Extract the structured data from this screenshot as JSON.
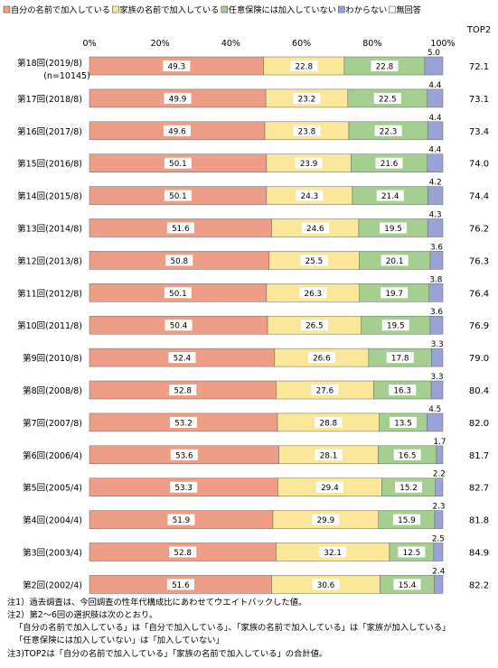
{
  "chart_data": {
    "type": "bar",
    "orientation": "horizontal",
    "stacked": true,
    "percent": true,
    "xlim": [
      0,
      100
    ],
    "x_ticks": [
      "0%",
      "20%",
      "40%",
      "60%",
      "80%",
      "100%"
    ],
    "right_header": "TOP2",
    "legend_placement": "top",
    "categories": [
      "第18回(2019/8)",
      "第17回(2018/8)",
      "第16回(2017/8)",
      "第15回(2016/8)",
      "第14回(2015/8)",
      "第13回(2014/8)",
      "第12回(2013/8)",
      "第11回(2012/8)",
      "第10回(2011/8)",
      "第9回(2010/8)",
      "第8回(2008/8)",
      "第7回(2007/8)",
      "第6回(2006/4)",
      "第5回(2005/4)",
      "第4回(2004/4)",
      "第3回(2003/4)",
      "第2回(2002/4)"
    ],
    "category_sublabels": [
      "(n=10145)",
      "",
      "",
      "",
      "",
      "",
      "",
      "",
      "",
      "",
      "",
      "",
      "",
      "",
      "",
      "",
      ""
    ],
    "series": [
      {
        "name": "自分の名前で加入している",
        "color": "#ee9e86",
        "values": [
          49.3,
          49.9,
          49.6,
          50.1,
          50.1,
          51.6,
          50.8,
          50.1,
          50.4,
          52.4,
          52.8,
          53.2,
          53.6,
          53.3,
          51.9,
          52.8,
          51.6
        ]
      },
      {
        "name": "家族の名前で加入している",
        "color": "#fae79a",
        "values": [
          22.8,
          23.2,
          23.8,
          23.9,
          24.3,
          24.6,
          25.5,
          26.3,
          26.5,
          26.6,
          27.6,
          28.8,
          28.1,
          29.4,
          29.9,
          32.1,
          30.6
        ]
      },
      {
        "name": "任意保険には加入していない",
        "color": "#a4cf90",
        "values": [
          22.8,
          22.5,
          22.3,
          21.6,
          21.4,
          19.5,
          20.1,
          19.7,
          19.5,
          17.8,
          16.3,
          13.5,
          16.5,
          15.2,
          15.9,
          12.5,
          15.4
        ]
      },
      {
        "name": "わからない",
        "color": "#9aa3d6",
        "values": [
          5.0,
          4.4,
          4.4,
          4.4,
          4.2,
          4.3,
          3.6,
          3.8,
          3.6,
          3.3,
          3.3,
          4.5,
          1.7,
          2.2,
          2.3,
          2.5,
          2.4
        ]
      },
      {
        "name": "無回答",
        "color": "#ffffff",
        "values": [
          0,
          0,
          0,
          0,
          0,
          0,
          0,
          0,
          0,
          0,
          0,
          0,
          0,
          0,
          0,
          0,
          0
        ]
      }
    ],
    "top2": [
      "72.1",
      "73.1",
      "73.4",
      "74.0",
      "74.4",
      "76.2",
      "76.3",
      "76.4",
      "76.9",
      "79.0",
      "80.4",
      "82.0",
      "81.7",
      "82.7",
      "81.8",
      "84.9",
      "82.2"
    ],
    "value_labels": [
      [
        "49.3",
        "22.8",
        "22.8",
        "5.0"
      ],
      [
        "49.9",
        "23.2",
        "22.5",
        "4.4"
      ],
      [
        "49.6",
        "23.8",
        "22.3",
        "4.4"
      ],
      [
        "50.1",
        "23.9",
        "21.6",
        "4.4"
      ],
      [
        "50.1",
        "24.3",
        "21.4",
        "4.2"
      ],
      [
        "51.6",
        "24.6",
        "19.5",
        "4.3"
      ],
      [
        "50.8",
        "25.5",
        "20.1",
        "3.6"
      ],
      [
        "50.1",
        "26.3",
        "19.7",
        "3.8"
      ],
      [
        "50.4",
        "26.5",
        "19.5",
        "3.6"
      ],
      [
        "52.4",
        "26.6",
        "17.8",
        "3.3"
      ],
      [
        "52.8",
        "27.6",
        "16.3",
        "3.3"
      ],
      [
        "53.2",
        "28.8",
        "13.5",
        "4.5"
      ],
      [
        "53.6",
        "28.1",
        "16.5",
        "1.7"
      ],
      [
        "53.3",
        "29.4",
        "15.2",
        "2.2"
      ],
      [
        "51.9",
        "29.9",
        "15.9",
        "2.3"
      ],
      [
        "52.8",
        "32.1",
        "12.5",
        "2.5"
      ],
      [
        "51.6",
        "30.6",
        "15.4",
        "2.4"
      ]
    ],
    "notes": [
      "注1）過去調査は、今回調査の性年代構成比にあわせてウエイトバックした値。",
      "注2）第2～6回の選択肢は次のとおり。",
      "「自分の名前で加入している」は「自分で加入している」、「家族の名前で加入している」は「家族が加入している」",
      "「任意保険には加入していない」は「加入していない」",
      "注3)TOP2は「自分の名前で加入している」「家族の名前で加入している」の合計値。"
    ]
  }
}
